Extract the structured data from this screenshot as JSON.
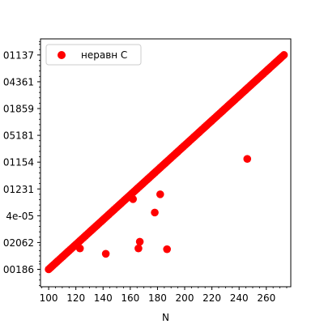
{
  "chart_data": {
    "type": "scatter",
    "title": "",
    "xlabel": "N",
    "ylabel": "",
    "xlim": [
      94,
      278
    ],
    "ylim": [
      0.35,
      9.6
    ],
    "x_ticks": [
      100,
      120,
      140,
      160,
      180,
      200,
      220,
      240,
      260
    ],
    "x_minor_step": 5,
    "y_tick_labels": [
      "00186",
      "02062",
      "4e-05",
      "01231",
      "01154",
      "05181",
      "01859",
      "04361",
      "01137"
    ],
    "y_ticks": [
      1,
      2,
      3,
      4,
      5,
      6,
      7,
      8,
      9
    ],
    "grid": false,
    "legend": {
      "position": "top-left",
      "entries": [
        {
          "label": "неравн C",
          "color": "#ff0000"
        }
      ]
    },
    "series": [
      {
        "name": "неравн C",
        "color": "#ff0000",
        "line": {
          "x_start": 100,
          "x_end": 273,
          "step": 1,
          "y_start": 1.0,
          "y_end": 9.0
        },
        "outliers": [
          {
            "x": 123,
            "y": 1.78
          },
          {
            "x": 142,
            "y": 1.58
          },
          {
            "x": 162,
            "y": 3.62
          },
          {
            "x": 166,
            "y": 1.78
          },
          {
            "x": 167,
            "y": 2.03
          },
          {
            "x": 178,
            "y": 3.12
          },
          {
            "x": 182,
            "y": 3.8
          },
          {
            "x": 187,
            "y": 1.75
          },
          {
            "x": 246,
            "y": 5.12
          }
        ]
      }
    ]
  }
}
